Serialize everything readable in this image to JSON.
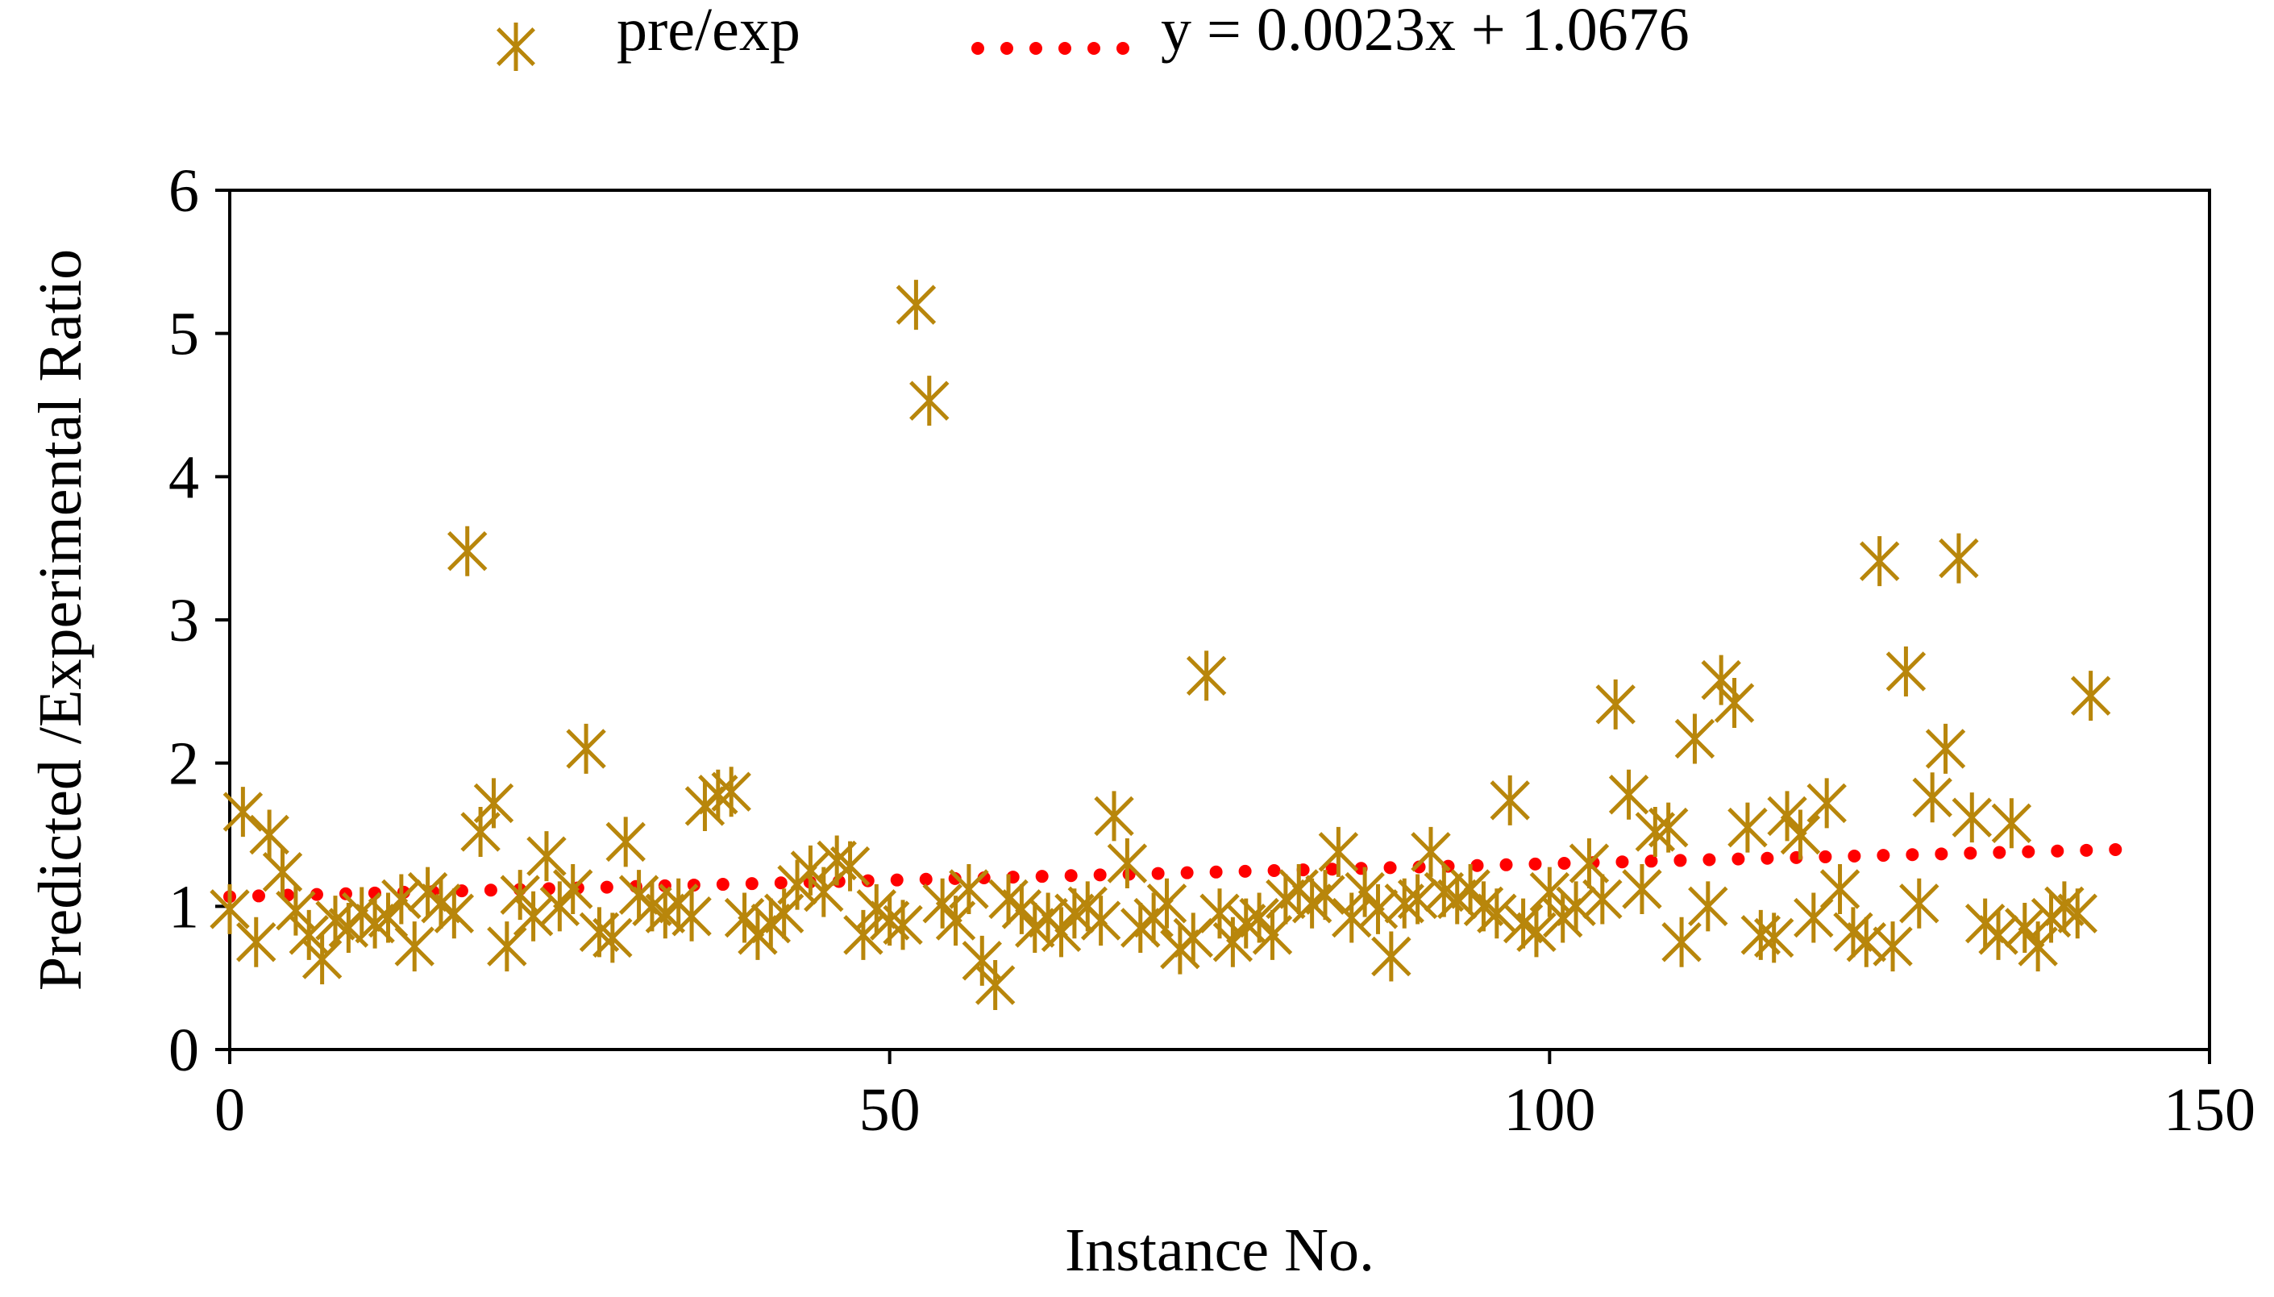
{
  "chart_data": {
    "type": "scatter",
    "title": "",
    "xlabel": "Instance No.",
    "ylabel": "Predicted /Experimental Ratio",
    "xlim": [
      0,
      150
    ],
    "ylim": [
      0,
      6
    ],
    "xticks": [
      0,
      50,
      100,
      150
    ],
    "yticks": [
      0,
      1,
      2,
      3,
      4,
      5,
      6
    ],
    "grid": false,
    "legend_position": "top-center",
    "series": [
      {
        "name": "pre/exp",
        "marker": "asterisk",
        "color": "#B8860B",
        "points": [
          [
            0,
            0.98
          ],
          [
            1,
            1.66
          ],
          [
            2,
            0.75
          ],
          [
            3,
            1.5
          ],
          [
            4,
            1.24
          ],
          [
            5,
            0.97
          ],
          [
            6,
            0.8
          ],
          [
            7,
            0.63
          ],
          [
            8,
            0.9
          ],
          [
            9,
            0.85
          ],
          [
            10,
            0.96
          ],
          [
            11,
            0.88
          ],
          [
            12,
            0.92
          ],
          [
            13,
            1.05
          ],
          [
            14,
            0.72
          ],
          [
            15,
            1.1
          ],
          [
            16,
            1.02
          ],
          [
            17,
            0.95
          ],
          [
            18,
            3.48
          ],
          [
            19,
            1.52
          ],
          [
            20,
            1.72
          ],
          [
            21,
            0.72
          ],
          [
            22,
            1.08
          ],
          [
            23,
            0.93
          ],
          [
            24,
            1.35
          ],
          [
            25,
            1.0
          ],
          [
            26,
            1.12
          ],
          [
            27,
            2.1
          ],
          [
            28,
            0.82
          ],
          [
            29,
            0.78
          ],
          [
            30,
            1.45
          ],
          [
            31,
            1.08
          ],
          [
            32,
            1.0
          ],
          [
            33,
            0.95
          ],
          [
            34,
            1.02
          ],
          [
            35,
            0.93
          ],
          [
            36,
            1.7
          ],
          [
            37,
            1.78
          ],
          [
            38,
            1.8
          ],
          [
            39,
            0.92
          ],
          [
            40,
            0.8
          ],
          [
            41,
            0.88
          ],
          [
            42,
            0.95
          ],
          [
            43,
            1.15
          ],
          [
            44,
            1.25
          ],
          [
            45,
            1.1
          ],
          [
            46,
            1.32
          ],
          [
            47,
            1.28
          ],
          [
            48,
            0.8
          ],
          [
            49,
            0.98
          ],
          [
            50,
            0.9
          ],
          [
            51,
            0.87
          ],
          [
            52,
            5.2
          ],
          [
            53,
            4.53
          ],
          [
            54,
            1.02
          ],
          [
            55,
            0.9
          ],
          [
            56,
            1.12
          ],
          [
            57,
            0.62
          ],
          [
            58,
            0.45
          ],
          [
            59,
            1.05
          ],
          [
            60,
            0.98
          ],
          [
            61,
            0.85
          ],
          [
            62,
            0.92
          ],
          [
            63,
            0.82
          ],
          [
            64,
            0.95
          ],
          [
            65,
            1.0
          ],
          [
            66,
            0.9
          ],
          [
            67,
            1.63
          ],
          [
            68,
            1.3
          ],
          [
            69,
            0.85
          ],
          [
            70,
            0.92
          ],
          [
            71,
            1.02
          ],
          [
            72,
            0.7
          ],
          [
            73,
            0.78
          ],
          [
            74,
            2.61
          ],
          [
            75,
            0.95
          ],
          [
            76,
            0.75
          ],
          [
            77,
            0.88
          ],
          [
            78,
            0.92
          ],
          [
            79,
            0.8
          ],
          [
            80,
            1.05
          ],
          [
            81,
            1.12
          ],
          [
            82,
            1.02
          ],
          [
            83,
            1.08
          ],
          [
            84,
            1.38
          ],
          [
            85,
            0.92
          ],
          [
            86,
            1.1
          ],
          [
            87,
            0.98
          ],
          [
            88,
            0.65
          ],
          [
            89,
            1.02
          ],
          [
            90,
            1.05
          ],
          [
            91,
            1.38
          ],
          [
            92,
            1.1
          ],
          [
            93,
            1.05
          ],
          [
            94,
            1.12
          ],
          [
            95,
            1.0
          ],
          [
            96,
            0.95
          ],
          [
            97,
            1.74
          ],
          [
            98,
            0.88
          ],
          [
            99,
            0.82
          ],
          [
            100,
            1.1
          ],
          [
            101,
            0.92
          ],
          [
            102,
            1.0
          ],
          [
            103,
            1.3
          ],
          [
            104,
            1.05
          ],
          [
            105,
            2.41
          ],
          [
            106,
            1.78
          ],
          [
            107,
            1.12
          ],
          [
            108,
            1.52
          ],
          [
            109,
            1.55
          ],
          [
            110,
            0.75
          ],
          [
            111,
            2.17
          ],
          [
            112,
            1.0
          ],
          [
            113,
            2.58
          ],
          [
            114,
            2.42
          ],
          [
            115,
            1.55
          ],
          [
            116,
            0.8
          ],
          [
            117,
            0.78
          ],
          [
            118,
            1.63
          ],
          [
            119,
            1.5
          ],
          [
            120,
            0.92
          ],
          [
            121,
            1.72
          ],
          [
            122,
            1.12
          ],
          [
            123,
            0.82
          ],
          [
            124,
            0.75
          ],
          [
            125,
            3.41
          ],
          [
            126,
            0.72
          ],
          [
            127,
            2.64
          ],
          [
            128,
            1.02
          ],
          [
            129,
            1.76
          ],
          [
            130,
            2.1
          ],
          [
            131,
            3.43
          ],
          [
            132,
            1.62
          ],
          [
            133,
            0.88
          ],
          [
            134,
            0.8
          ],
          [
            135,
            1.58
          ],
          [
            136,
            0.85
          ],
          [
            137,
            0.72
          ],
          [
            138,
            0.92
          ],
          [
            139,
            1.0
          ],
          [
            140,
            0.95
          ],
          [
            141,
            2.47
          ]
        ]
      }
    ],
    "trendline": {
      "label": "y = 0.0023x + 1.0676",
      "slope": 0.0023,
      "intercept": 1.0676,
      "x_range": [
        0,
        144
      ],
      "style": "dotted",
      "color": "#FF0000"
    }
  }
}
